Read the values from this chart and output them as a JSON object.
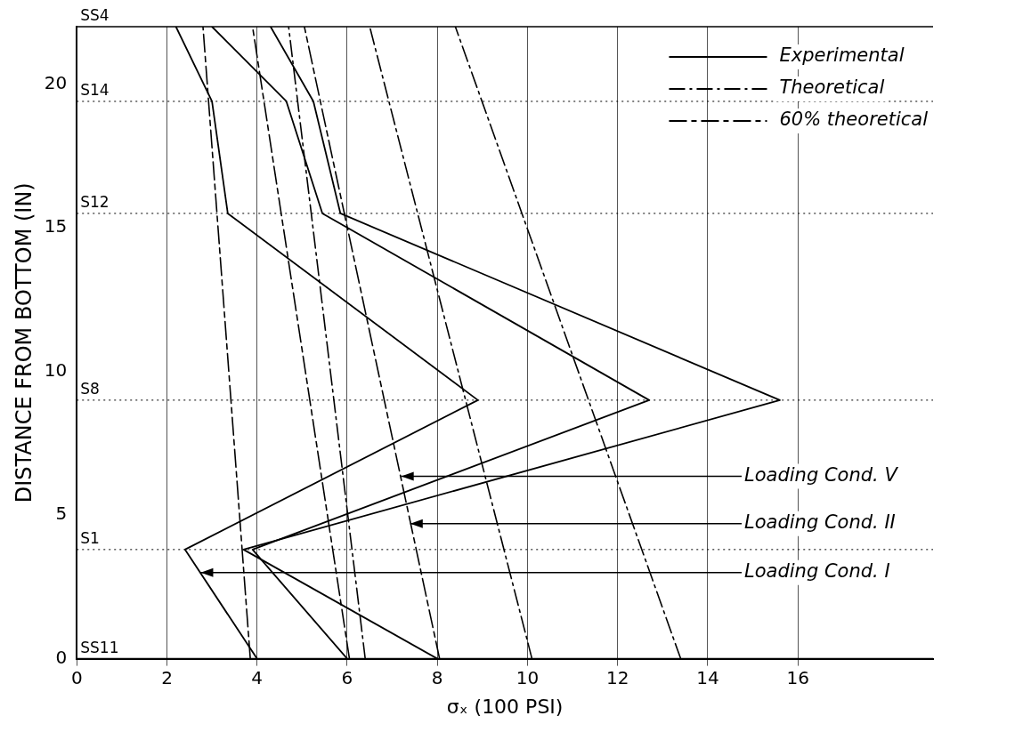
{
  "chart_data": {
    "type": "line",
    "xlabel": "σₓ (100 PSI)",
    "ylabel": "DISTANCE FROM BOTTOM (IN)",
    "xlim": [
      0,
      19
    ],
    "xticks": [
      0,
      2,
      4,
      6,
      8,
      10,
      12,
      14,
      16
    ],
    "ylim": [
      0,
      22
    ],
    "yticks": [
      0,
      5,
      10,
      15,
      20
    ],
    "grid": "x",
    "legend": "top right",
    "marker": "none",
    "series": [
      {
        "name": "Experimental",
        "color": "#000000",
        "line_style": "solid",
        "x": [
          4.0,
          2.4,
          8.9,
          3.35,
          3.0,
          2.2
        ],
        "values": [
          0,
          3.8,
          9.0,
          15.5,
          19.4,
          22
        ]
      },
      {
        "color": "#000000",
        "line_style": "solid",
        "x": [
          6.0,
          3.9,
          12.7,
          5.45,
          4.65,
          3.0
        ],
        "values": [
          0,
          3.8,
          9.0,
          15.5,
          19.4,
          22
        ]
      },
      {
        "color": "#000000",
        "line_style": "solid",
        "x": [
          8.0,
          3.7,
          15.6,
          5.85,
          5.25,
          4.3
        ],
        "values": [
          0,
          3.8,
          9.0,
          15.5,
          19.4,
          22
        ]
      },
      {
        "name": "Theoretical",
        "color": "#000000",
        "line_style": "dashed",
        "x": [
          6.4,
          4.7
        ],
        "values": [
          0,
          22
        ]
      },
      {
        "color": "#000000",
        "line_style": "dashed",
        "x": [
          10.1,
          6.5
        ],
        "values": [
          0,
          22
        ]
      },
      {
        "color": "#000000",
        "line_style": "dashed",
        "x": [
          13.4,
          8.4
        ],
        "values": [
          0,
          22
        ]
      },
      {
        "name": "60% theoretical",
        "color": "#000000",
        "line_style": "dotted",
        "x": [
          3.85,
          2.8
        ],
        "values": [
          0,
          22
        ]
      },
      {
        "color": "#000000",
        "line_style": "dotted",
        "x": [
          6.05,
          3.9
        ],
        "values": [
          0,
          22
        ]
      },
      {
        "color": "#000000",
        "line_style": "dotted",
        "x": [
          8.05,
          5.05
        ],
        "values": [
          0,
          22
        ]
      }
    ],
    "ref_lines": [
      {
        "axis": "y",
        "value": 0,
        "label": "SS11",
        "line_style": "solid"
      },
      {
        "axis": "y",
        "value": 3.8,
        "label": "S1",
        "line_style": "dotted"
      },
      {
        "axis": "y",
        "value": 9.0,
        "label": "S8",
        "line_style": "dotted"
      },
      {
        "axis": "y",
        "value": 15.5,
        "label": "S12",
        "line_style": "dotted"
      },
      {
        "axis": "y",
        "value": 19.4,
        "label": "S14",
        "line_style": "dotted"
      },
      {
        "axis": "y",
        "value": 22,
        "label": "SS4",
        "line_style": "solid"
      }
    ],
    "annotations": [
      {
        "text": "Loading Cond. V",
        "x": 7.2,
        "y": 6.35
      },
      {
        "text": "Loading Cond. II",
        "x": 7.4,
        "y": 4.7
      },
      {
        "text": "Loading Cond. I",
        "x": 2.75,
        "y": 3.0
      }
    ]
  }
}
